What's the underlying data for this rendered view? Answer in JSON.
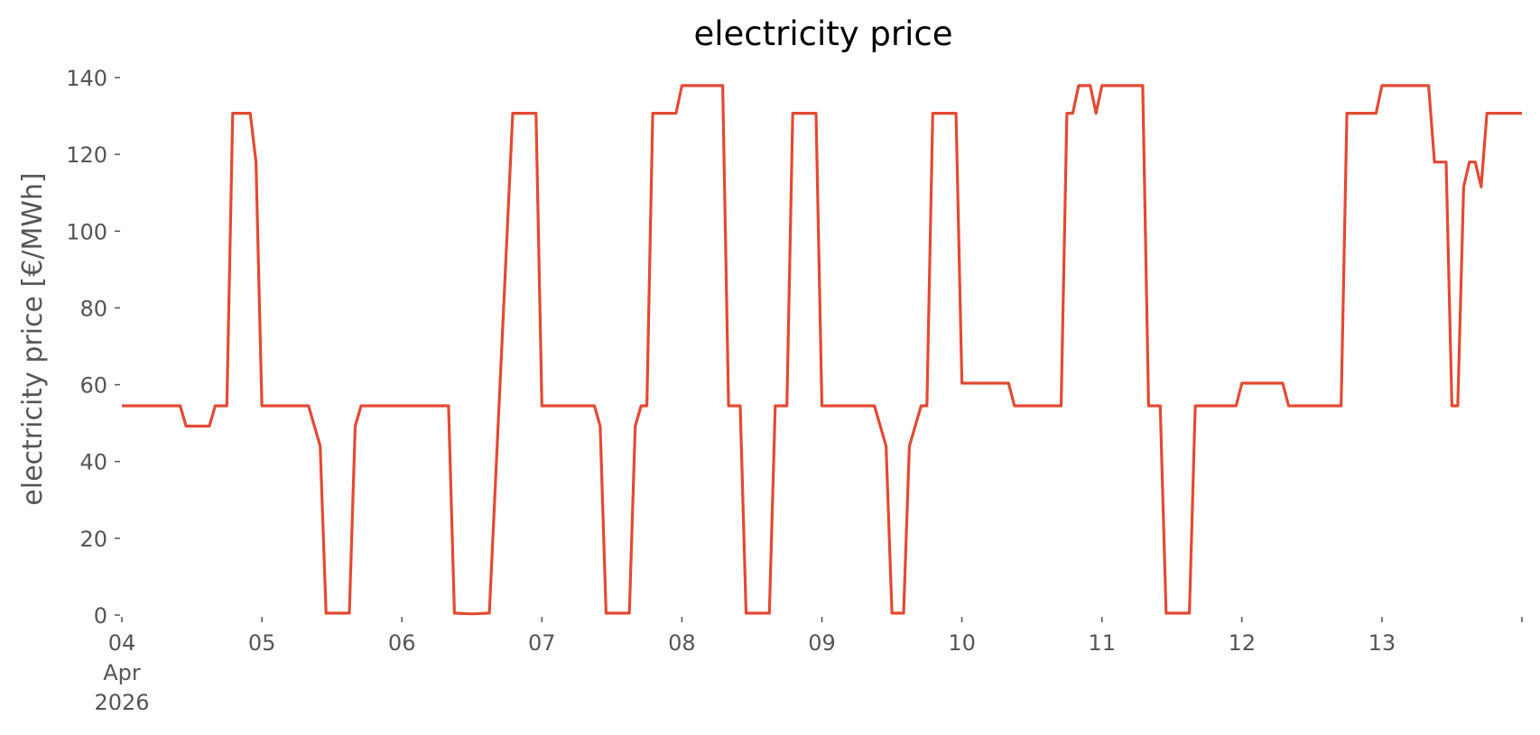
{
  "chart_data": {
    "type": "line",
    "title": "electricity price",
    "xlabel": "",
    "ylabel": "electricity price [€/MWh]",
    "x_unit": "days",
    "xlim": [
      "2026-04-04 00:00",
      "2026-04-14 00:00"
    ],
    "ylim": [
      0,
      140
    ],
    "grid": false,
    "legend": "none",
    "colors": {
      "series": "#e24a33",
      "text": "#555555",
      "title": "#000000"
    },
    "x_ticks": [
      {
        "at": "2026-04-04 00:00",
        "label": "04",
        "label2": "Apr",
        "label3": "2026"
      },
      {
        "at": "2026-04-05 00:00",
        "label": "05"
      },
      {
        "at": "2026-04-06 00:00",
        "label": "06"
      },
      {
        "at": "2026-04-07 00:00",
        "label": "07"
      },
      {
        "at": "2026-04-08 00:00",
        "label": "08"
      },
      {
        "at": "2026-04-09 00:00",
        "label": "09"
      },
      {
        "at": "2026-04-10 00:00",
        "label": "10"
      },
      {
        "at": "2026-04-11 00:00",
        "label": "11"
      },
      {
        "at": "2026-04-12 00:00",
        "label": "12"
      },
      {
        "at": "2026-04-13 00:00",
        "label": "13"
      },
      {
        "at": "2026-04-14 00:00",
        "label": ""
      }
    ],
    "y_ticks": [
      0,
      20,
      40,
      60,
      80,
      100,
      120,
      140
    ],
    "series": [
      {
        "values": [
          [
            "2026-04-04 00:00",
            54.5
          ],
          [
            "2026-04-04 10:00",
            54.5
          ],
          [
            "2026-04-04 11:00",
            49.2
          ],
          [
            "2026-04-04 15:00",
            49.2
          ],
          [
            "2026-04-04 16:00",
            54.5
          ],
          [
            "2026-04-04 18:00",
            54.5
          ],
          [
            "2026-04-04 19:00",
            130.7
          ],
          [
            "2026-04-04 22:00",
            130.7
          ],
          [
            "2026-04-04 23:00",
            118.0
          ],
          [
            "2026-04-05 00:00",
            54.5
          ],
          [
            "2026-04-05 08:00",
            54.5
          ],
          [
            "2026-04-05 10:00",
            44.0
          ],
          [
            "2026-04-05 11:00",
            0.5
          ],
          [
            "2026-04-05 15:00",
            0.5
          ],
          [
            "2026-04-05 16:00",
            49.2
          ],
          [
            "2026-04-05 17:00",
            54.5
          ],
          [
            "2026-04-06 08:00",
            54.5
          ],
          [
            "2026-04-06 09:00",
            0.5
          ],
          [
            "2026-04-06 12:00",
            0.3
          ],
          [
            "2026-04-06 15:00",
            0.5
          ],
          [
            "2026-04-06 19:00",
            130.7
          ],
          [
            "2026-04-06 23:00",
            130.7
          ],
          [
            "2026-04-07 00:00",
            54.5
          ],
          [
            "2026-04-07 09:00",
            54.5
          ],
          [
            "2026-04-07 10:00",
            49.2
          ],
          [
            "2026-04-07 11:00",
            0.5
          ],
          [
            "2026-04-07 15:00",
            0.5
          ],
          [
            "2026-04-07 16:00",
            49.2
          ],
          [
            "2026-04-07 17:00",
            54.5
          ],
          [
            "2026-04-07 18:00",
            54.5
          ],
          [
            "2026-04-07 19:00",
            130.7
          ],
          [
            "2026-04-07 23:00",
            130.7
          ],
          [
            "2026-04-08 00:00",
            137.9
          ],
          [
            "2026-04-08 07:00",
            137.9
          ],
          [
            "2026-04-08 08:00",
            54.5
          ],
          [
            "2026-04-08 10:00",
            54.5
          ],
          [
            "2026-04-08 11:00",
            0.5
          ],
          [
            "2026-04-08 15:00",
            0.5
          ],
          [
            "2026-04-08 16:00",
            54.5
          ],
          [
            "2026-04-08 18:00",
            54.5
          ],
          [
            "2026-04-08 19:00",
            130.7
          ],
          [
            "2026-04-08 23:00",
            130.7
          ],
          [
            "2026-04-09 00:00",
            54.5
          ],
          [
            "2026-04-09 09:00",
            54.5
          ],
          [
            "2026-04-09 11:00",
            44.0
          ],
          [
            "2026-04-09 12:00",
            0.5
          ],
          [
            "2026-04-09 14:00",
            0.5
          ],
          [
            "2026-04-09 15:00",
            44.0
          ],
          [
            "2026-04-09 17:00",
            54.5
          ],
          [
            "2026-04-09 18:00",
            54.5
          ],
          [
            "2026-04-09 19:00",
            130.7
          ],
          [
            "2026-04-09 23:00",
            130.7
          ],
          [
            "2026-04-10 00:00",
            60.4
          ],
          [
            "2026-04-10 08:00",
            60.4
          ],
          [
            "2026-04-10 09:00",
            54.5
          ],
          [
            "2026-04-10 17:00",
            54.5
          ],
          [
            "2026-04-10 18:00",
            130.7
          ],
          [
            "2026-04-10 19:00",
            130.7
          ],
          [
            "2026-04-10 20:00",
            137.9
          ],
          [
            "2026-04-10 22:00",
            137.9
          ],
          [
            "2026-04-10 23:00",
            130.7
          ],
          [
            "2026-04-11 00:00",
            137.9
          ],
          [
            "2026-04-11 07:00",
            137.9
          ],
          [
            "2026-04-11 08:00",
            54.5
          ],
          [
            "2026-04-11 10:00",
            54.5
          ],
          [
            "2026-04-11 11:00",
            0.5
          ],
          [
            "2026-04-11 15:00",
            0.5
          ],
          [
            "2026-04-11 16:00",
            54.5
          ],
          [
            "2026-04-11 23:00",
            54.5
          ],
          [
            "2026-04-12 00:00",
            60.4
          ],
          [
            "2026-04-12 07:00",
            60.4
          ],
          [
            "2026-04-12 08:00",
            54.5
          ],
          [
            "2026-04-12 17:00",
            54.5
          ],
          [
            "2026-04-12 18:00",
            130.7
          ],
          [
            "2026-04-12 23:00",
            130.7
          ],
          [
            "2026-04-13 00:00",
            137.9
          ],
          [
            "2026-04-13 08:00",
            137.9
          ],
          [
            "2026-04-13 09:00",
            118.0
          ],
          [
            "2026-04-13 11:00",
            118.0
          ],
          [
            "2026-04-13 12:00",
            54.5
          ],
          [
            "2026-04-13 13:00",
            54.5
          ],
          [
            "2026-04-13 14:00",
            111.5
          ],
          [
            "2026-04-13 15:00",
            118.0
          ],
          [
            "2026-04-13 16:00",
            118.0
          ],
          [
            "2026-04-13 17:00",
            111.5
          ],
          [
            "2026-04-13 18:00",
            130.7
          ],
          [
            "2026-04-14 00:00",
            130.7
          ]
        ]
      }
    ]
  }
}
